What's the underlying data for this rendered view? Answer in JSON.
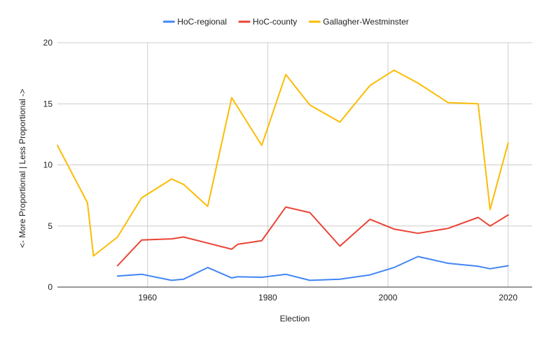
{
  "chart_data": {
    "type": "line",
    "title": "",
    "xlabel": "Election",
    "ylabel": "<- More Proportional      |      Less Proportional ->",
    "xlim": [
      1945,
      2024
    ],
    "ylim": [
      0,
      20
    ],
    "x_ticks": [
      1960,
      1980,
      2000,
      2020
    ],
    "y_ticks": [
      0,
      5,
      10,
      15,
      20
    ],
    "grid": "on",
    "legend_position": "top",
    "series": [
      {
        "name": "HoC-regional",
        "color": "#4285f4",
        "points": [
          [
            1955,
            0.9
          ],
          [
            1959,
            1.05
          ],
          [
            1964,
            0.55
          ],
          [
            1966,
            0.65
          ],
          [
            1970,
            1.6
          ],
          [
            1974,
            0.75
          ],
          [
            1975,
            0.85
          ],
          [
            1979,
            0.8
          ],
          [
            1983,
            1.05
          ],
          [
            1987,
            0.55
          ],
          [
            1992,
            0.65
          ],
          [
            1997,
            1.0
          ],
          [
            2001,
            1.6
          ],
          [
            2005,
            2.5
          ],
          [
            2010,
            1.95
          ],
          [
            2015,
            1.7
          ],
          [
            2017,
            1.5
          ],
          [
            2020,
            1.75
          ]
        ]
      },
      {
        "name": "HoC-county",
        "color": "#ea4335",
        "points": [
          [
            1955,
            1.75
          ],
          [
            1959,
            3.85
          ],
          [
            1964,
            3.95
          ],
          [
            1966,
            4.1
          ],
          [
            1970,
            3.6
          ],
          [
            1974,
            3.1
          ],
          [
            1975,
            3.5
          ],
          [
            1979,
            3.8
          ],
          [
            1983,
            6.55
          ],
          [
            1987,
            6.1
          ],
          [
            1992,
            3.35
          ],
          [
            1997,
            5.55
          ],
          [
            2001,
            4.75
          ],
          [
            2005,
            4.4
          ],
          [
            2010,
            4.8
          ],
          [
            2015,
            5.7
          ],
          [
            2017,
            5.0
          ],
          [
            2020,
            5.9
          ]
        ]
      },
      {
        "name": "Gallagher-Westminster",
        "color": "#fbbc04",
        "points": [
          [
            1945,
            11.6
          ],
          [
            1950,
            6.9
          ],
          [
            1951,
            2.55
          ],
          [
            1955,
            4.1
          ],
          [
            1959,
            7.3
          ],
          [
            1964,
            8.85
          ],
          [
            1966,
            8.4
          ],
          [
            1970,
            6.6
          ],
          [
            1974,
            15.5
          ],
          [
            1979,
            11.6
          ],
          [
            1983,
            17.4
          ],
          [
            1987,
            14.9
          ],
          [
            1992,
            13.5
          ],
          [
            1997,
            16.5
          ],
          [
            2001,
            17.75
          ],
          [
            2005,
            16.7
          ],
          [
            2010,
            15.1
          ],
          [
            2015,
            15.0
          ],
          [
            2017,
            6.35
          ],
          [
            2020,
            11.8
          ]
        ]
      }
    ]
  }
}
